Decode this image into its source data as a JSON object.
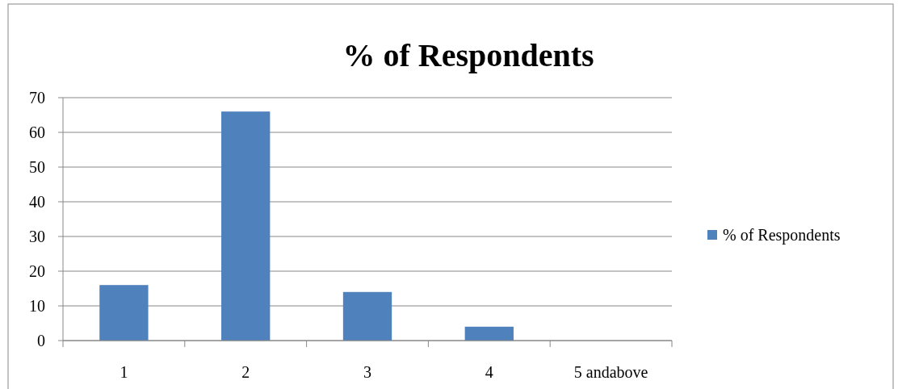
{
  "chart_data": {
    "type": "bar",
    "title": "% of Respondents",
    "categories": [
      "1",
      "2",
      "3",
      "4",
      "5 andabove"
    ],
    "series": [
      {
        "name": "% of Respondents",
        "color": "#4f81bd",
        "values": [
          16,
          66,
          14,
          4,
          0
        ]
      }
    ],
    "ylim": [
      0,
      70
    ],
    "yticks": [
      0,
      10,
      20,
      30,
      40,
      50,
      60,
      70
    ],
    "grid": "y",
    "legend": "right"
  }
}
